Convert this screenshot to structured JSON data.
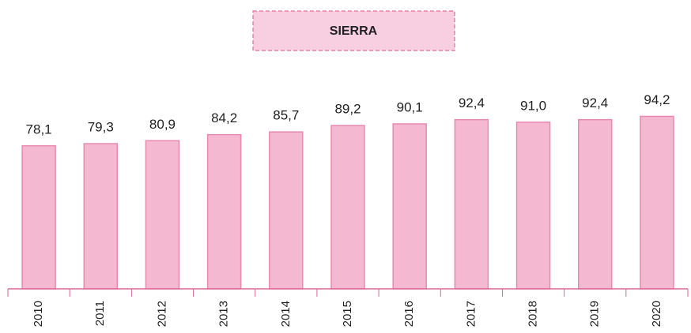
{
  "chart_data": {
    "type": "bar",
    "title": "SIERRA",
    "categories": [
      "2010",
      "2011",
      "2012",
      "2013",
      "2014",
      "2015",
      "2016",
      "2017",
      "2018",
      "2019",
      "2020"
    ],
    "values": [
      78.1,
      79.3,
      80.9,
      84.2,
      85.7,
      89.2,
      90.1,
      92.4,
      91.0,
      92.4,
      94.2
    ],
    "value_labels": [
      "78,1",
      "79,3",
      "80,9",
      "84,2",
      "85,7",
      "89,2",
      "90,1",
      "92,4",
      "91,0",
      "92,4",
      "94,2"
    ],
    "color": "#f4b8d0"
  }
}
